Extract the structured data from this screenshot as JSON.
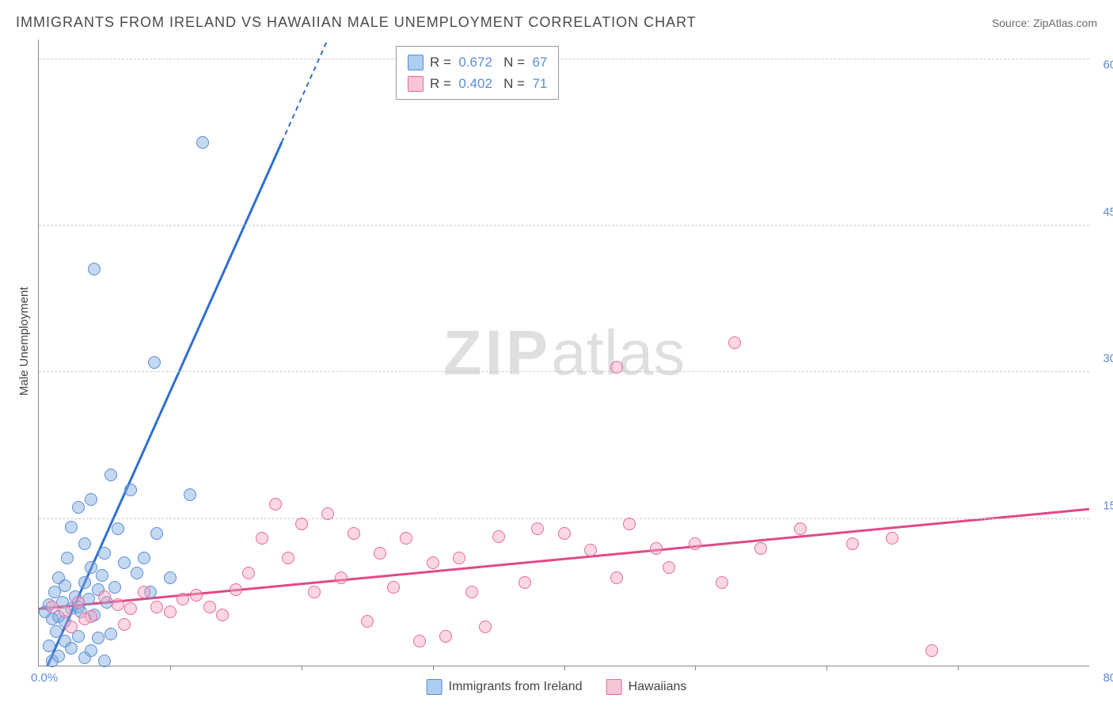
{
  "title": "IMMIGRANTS FROM IRELAND VS HAWAIIAN MALE UNEMPLOYMENT CORRELATION CHART",
  "source": "Source: ZipAtlas.com",
  "ylabel": "Male Unemployment",
  "watermark_bold": "ZIP",
  "watermark_rest": "atlas",
  "plot": {
    "type": "scatter",
    "xlim": [
      0,
      80
    ],
    "ylim": [
      0,
      64
    ],
    "x_ticks_minor": [
      10,
      20,
      30,
      40,
      50,
      60,
      70
    ],
    "x_label_origin": "0.0%",
    "x_label_max": "80.0%",
    "y_ticks": [
      15,
      30,
      45,
      60
    ],
    "y_tick_labels": [
      "15.0%",
      "30.0%",
      "45.0%",
      "60.0%"
    ],
    "y_grid_ticks": [
      15,
      30,
      45,
      62
    ],
    "background_color": "#ffffff",
    "grid_color": "#cccccc",
    "axis_color": "#888888",
    "tick_label_color": "#5b8dd6",
    "origin_label_color": "#5b8dd6",
    "series": [
      {
        "name": "Immigrants from Ireland",
        "fill_color": "rgba(125,168,222,0.45)",
        "stroke_color": "#5b8dd6",
        "swatch_fill": "#aecdf0",
        "swatch_border": "#5b8dd6",
        "line_color": "#2f6fd0",
        "line_width": 3,
        "R": "0.672",
        "N": "67",
        "trend": {
          "x1": 0,
          "y1": -2,
          "x2": 22,
          "y2": 64,
          "dashed_after_x": 18.5
        },
        "points": [
          [
            0.5,
            5.5
          ],
          [
            0.8,
            6.2
          ],
          [
            1.0,
            4.8
          ],
          [
            1.2,
            7.5
          ],
          [
            1.5,
            5.0
          ],
          [
            1.5,
            9.0
          ],
          [
            1.8,
            6.5
          ],
          [
            2.0,
            8.2
          ],
          [
            2.0,
            4.5
          ],
          [
            2.2,
            11.0
          ],
          [
            2.5,
            5.8
          ],
          [
            2.5,
            14.2
          ],
          [
            2.8,
            7.0
          ],
          [
            3.0,
            6.0
          ],
          [
            3.0,
            16.2
          ],
          [
            3.2,
            5.5
          ],
          [
            3.5,
            8.5
          ],
          [
            3.5,
            12.5
          ],
          [
            3.8,
            6.8
          ],
          [
            4.0,
            10.0
          ],
          [
            4.0,
            17.0
          ],
          [
            4.2,
            5.2
          ],
          [
            4.5,
            7.8
          ],
          [
            4.8,
            9.2
          ],
          [
            5.0,
            11.5
          ],
          [
            5.2,
            6.5
          ],
          [
            5.5,
            19.5
          ],
          [
            5.8,
            8.0
          ],
          [
            6.0,
            14.0
          ],
          [
            6.5,
            10.5
          ],
          [
            7.0,
            18.0
          ],
          [
            7.5,
            9.5
          ],
          [
            8.0,
            11.0
          ],
          [
            8.5,
            7.5
          ],
          [
            9.0,
            13.5
          ],
          [
            10.0,
            9.0
          ],
          [
            1.0,
            0.5
          ],
          [
            1.5,
            1.0
          ],
          [
            2.0,
            2.5
          ],
          [
            2.5,
            1.8
          ],
          [
            3.0,
            3.0
          ],
          [
            3.5,
            0.8
          ],
          [
            4.0,
            1.5
          ],
          [
            4.5,
            2.8
          ],
          [
            5.0,
            0.5
          ],
          [
            5.5,
            3.2
          ],
          [
            0.8,
            2.0
          ],
          [
            1.3,
            3.5
          ],
          [
            4.2,
            40.5
          ],
          [
            12.5,
            53.5
          ],
          [
            8.8,
            31.0
          ],
          [
            11.5,
            17.5
          ]
        ]
      },
      {
        "name": "Hawaiians",
        "fill_color": "rgba(244,166,192,0.45)",
        "stroke_color": "#e76a9b",
        "swatch_fill": "#f7c5d7",
        "swatch_border": "#e76a9b",
        "line_color": "#e04a86",
        "line_width": 3,
        "R": "0.402",
        "N": "71",
        "trend": {
          "x1": 0,
          "y1": 5.8,
          "x2": 80,
          "y2": 16.0
        },
        "points": [
          [
            1.0,
            6.0
          ],
          [
            2.0,
            5.5
          ],
          [
            3.0,
            6.5
          ],
          [
            4.0,
            5.0
          ],
          [
            5.0,
            7.0
          ],
          [
            6.0,
            6.2
          ],
          [
            7.0,
            5.8
          ],
          [
            8.0,
            7.5
          ],
          [
            9.0,
            6.0
          ],
          [
            10.0,
            5.5
          ],
          [
            11.0,
            6.8
          ],
          [
            12.0,
            7.2
          ],
          [
            13.0,
            6.0
          ],
          [
            14.0,
            5.2
          ],
          [
            15.0,
            7.8
          ],
          [
            16.0,
            9.5
          ],
          [
            17.0,
            13.0
          ],
          [
            18.0,
            16.5
          ],
          [
            19.0,
            11.0
          ],
          [
            20.0,
            14.5
          ],
          [
            21.0,
            7.5
          ],
          [
            22.0,
            15.5
          ],
          [
            23.0,
            9.0
          ],
          [
            24.0,
            13.5
          ],
          [
            25.0,
            4.5
          ],
          [
            26.0,
            11.5
          ],
          [
            27.0,
            8.0
          ],
          [
            28.0,
            13.0
          ],
          [
            29.0,
            2.5
          ],
          [
            30.0,
            10.5
          ],
          [
            31.0,
            3.0
          ],
          [
            32.0,
            11.0
          ],
          [
            33.0,
            7.5
          ],
          [
            34.0,
            4.0
          ],
          [
            35.0,
            13.2
          ],
          [
            37.0,
            8.5
          ],
          [
            38.0,
            14.0
          ],
          [
            40.0,
            13.5
          ],
          [
            42.0,
            11.8
          ],
          [
            44.0,
            9.0
          ],
          [
            45.0,
            14.5
          ],
          [
            47.0,
            12.0
          ],
          [
            48.0,
            10.0
          ],
          [
            50.0,
            12.5
          ],
          [
            52.0,
            8.5
          ],
          [
            55.0,
            12.0
          ],
          [
            58.0,
            14.0
          ],
          [
            62.0,
            12.5
          ],
          [
            65.0,
            13.0
          ],
          [
            53.0,
            33.0
          ],
          [
            68.0,
            1.5
          ],
          [
            44.0,
            30.5
          ],
          [
            2.5,
            4.0
          ],
          [
            3.5,
            4.8
          ],
          [
            6.5,
            4.2
          ]
        ]
      }
    ]
  },
  "legend_top": {
    "r_label": "R  =",
    "n_label": "N  =",
    "value_color": "#5b8dd6"
  },
  "legend_bottom": [
    {
      "label": "Immigrants from Ireland",
      "fill": "#aecdf0",
      "border": "#5b8dd6"
    },
    {
      "label": "Hawaiians",
      "fill": "#f7c5d7",
      "border": "#e76a9b"
    }
  ]
}
